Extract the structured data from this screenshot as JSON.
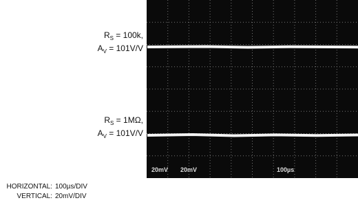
{
  "labels": [
    {
      "symbol": "R",
      "subscript": "S",
      "text": " = 100k,"
    },
    {
      "symbol": "A",
      "subscript": "V",
      "text": " = 101V/V"
    },
    {
      "symbol": "R",
      "subscript": "S",
      "text": " = 1MΩ,"
    },
    {
      "symbol": "A",
      "subscript": "V",
      "text": " = 101V/V"
    }
  ],
  "screen_labels": [
    "20mV",
    "20mV",
    "100µs"
  ],
  "settings": [
    {
      "key": "HORIZONTAL:",
      "value": "100µs/DIV"
    },
    {
      "key": "VERTICAL:",
      "value": "20mV/DIV"
    }
  ]
}
